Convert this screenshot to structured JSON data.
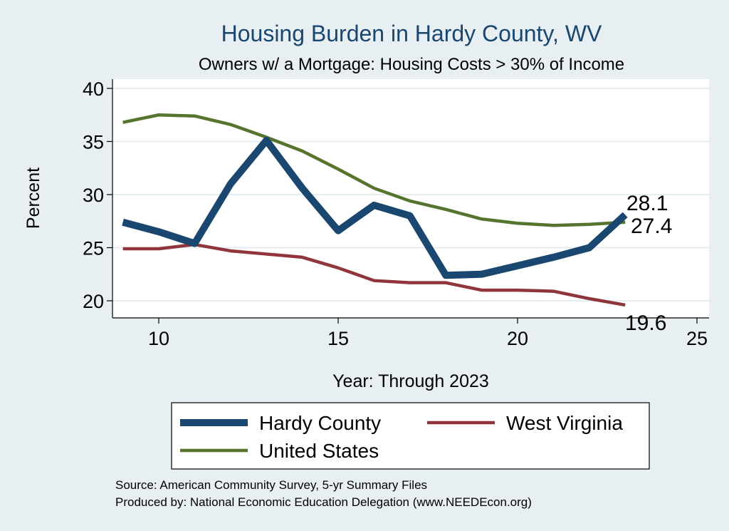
{
  "chart_data": {
    "type": "line",
    "title": "Housing Burden in Hardy County, WV",
    "subtitle": "Owners w/ a Mortgage: Housing Costs > 30% of Income",
    "xlabel": "Year: Through 2023",
    "ylabel": "Percent",
    "xlim": [
      9,
      25
    ],
    "ylim": [
      19,
      40.5
    ],
    "xticks": [
      10,
      15,
      20,
      25
    ],
    "yticks": [
      20,
      25,
      30,
      35,
      40
    ],
    "grid": true,
    "x": [
      9,
      10,
      11,
      12,
      13,
      14,
      15,
      16,
      17,
      18,
      19,
      20,
      21,
      22,
      23
    ],
    "series": [
      {
        "name": "Hardy County",
        "color": "#1a476f",
        "values": [
          27.4,
          26.5,
          25.4,
          31.0,
          35.1,
          30.6,
          26.6,
          29.0,
          28.0,
          22.4,
          22.5,
          23.3,
          24.1,
          25.0,
          28.1
        ],
        "end_label": "28.1"
      },
      {
        "name": "West Virginia",
        "color": "#90353b",
        "values": [
          24.9,
          24.9,
          25.3,
          24.7,
          24.4,
          24.1,
          23.1,
          21.9,
          21.7,
          21.7,
          21.0,
          21.0,
          20.9,
          20.2,
          19.6
        ],
        "end_label": "19.6"
      },
      {
        "name": "United States",
        "color": "#55752f",
        "values": [
          36.8,
          37.5,
          37.4,
          36.6,
          35.4,
          34.1,
          32.4,
          30.6,
          29.4,
          28.6,
          27.7,
          27.3,
          27.1,
          27.2,
          27.4
        ],
        "end_label": "27.4"
      }
    ],
    "legend": {
      "placement": "bottom",
      "entries": [
        "Hardy County",
        "West Virginia",
        "United States"
      ]
    }
  },
  "source_lines": [
    "Source: American Community Survey, 5-yr Summary Files",
    "Produced by: National Economic Education Delegation (www.NEEDEcon.org)"
  ]
}
